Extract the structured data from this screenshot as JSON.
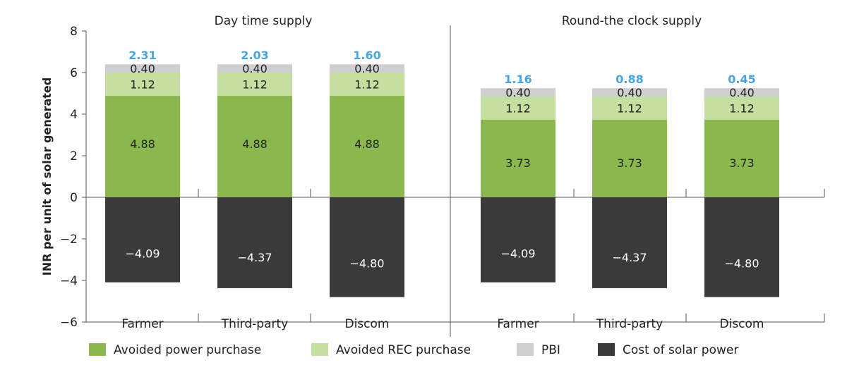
{
  "chart_data": {
    "type": "bar",
    "stacked": true,
    "ylabel": "INR per unit of solar generated",
    "ylim": [
      -6,
      8
    ],
    "yticks": [
      "8",
      "6",
      "4",
      "2",
      "0",
      "−2",
      "−4",
      "−6"
    ],
    "ytick_values": [
      8,
      6,
      4,
      2,
      0,
      -2,
      -4,
      -6
    ],
    "groups": [
      {
        "title": "Day time supply",
        "categories": [
          "Farmer",
          "Third-party",
          "Discom"
        ],
        "totals": [
          "2.31",
          "2.03",
          "1.60"
        ],
        "series": [
          {
            "name": "Avoided power purchase",
            "values": [
              4.88,
              4.88,
              4.88
            ],
            "labels": [
              "4.88",
              "4.88",
              "4.88"
            ]
          },
          {
            "name": "Avoided REC purchase",
            "values": [
              1.12,
              1.12,
              1.12
            ],
            "labels": [
              "1.12",
              "1.12",
              "1.12"
            ]
          },
          {
            "name": "PBI",
            "values": [
              0.4,
              0.4,
              0.4
            ],
            "labels": [
              "0.40",
              "0.40",
              "0.40"
            ]
          },
          {
            "name": "Cost of solar power",
            "values": [
              -4.09,
              -4.37,
              -4.8
            ],
            "labels": [
              "−4.09",
              "−4.37",
              "−4.80"
            ]
          }
        ]
      },
      {
        "title": "Round-the clock supply",
        "categories": [
          "Farmer",
          "Third-party",
          "Discom"
        ],
        "totals": [
          "1.16",
          "0.88",
          "0.45"
        ],
        "series": [
          {
            "name": "Avoided power purchase",
            "values": [
              3.73,
              3.73,
              3.73
            ],
            "labels": [
              "3.73",
              "3.73",
              "3.73"
            ]
          },
          {
            "name": "Avoided REC purchase",
            "values": [
              1.12,
              1.12,
              1.12
            ],
            "labels": [
              "1.12",
              "1.12",
              "1.12"
            ]
          },
          {
            "name": "PBI",
            "values": [
              0.4,
              0.4,
              0.4
            ],
            "labels": [
              "0.40",
              "0.40",
              "0.40"
            ]
          },
          {
            "name": "Cost of solar power",
            "values": [
              -4.09,
              -4.37,
              -4.8
            ],
            "labels": [
              "−4.09",
              "−4.37",
              "−4.80"
            ]
          }
        ]
      }
    ],
    "legend": [
      {
        "name": "Avoided power purchase",
        "color": "#8ab84f"
      },
      {
        "name": "Avoided REC purchase",
        "color": "#c5dfa0"
      },
      {
        "name": "PBI",
        "color": "#cfcfcf"
      },
      {
        "name": "Cost of solar power",
        "color": "#3a3a3a"
      }
    ],
    "colors": {
      "avoided_power": "#8ab84f",
      "avoided_rec": "#c5dfa0",
      "pbi": "#cfcfcf",
      "cost": "#3a3a3a",
      "total_label": "#4aa3df",
      "axis": "#555555"
    },
    "grid": false,
    "legend_position": "bottom"
  }
}
